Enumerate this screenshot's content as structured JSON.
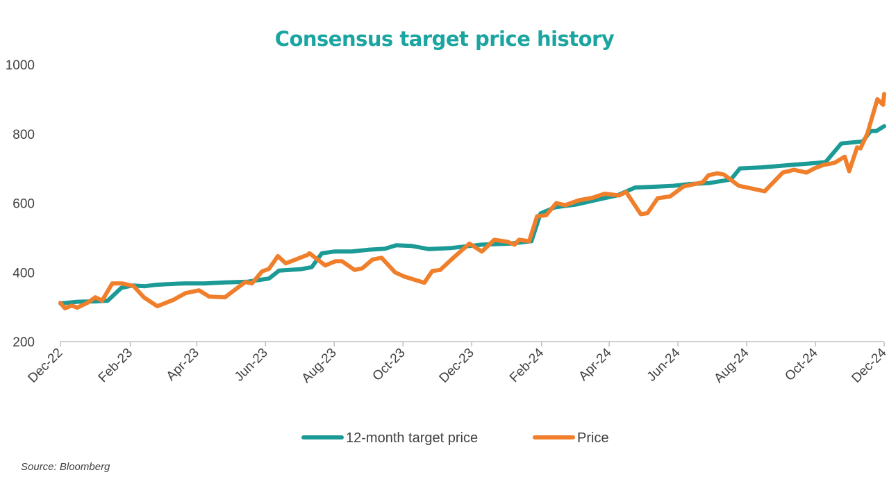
{
  "source_note": "Source: Bloomberg",
  "chart_data": {
    "type": "line",
    "title": "Consensus target price history",
    "title_color": "#1aa5a0",
    "ylim": [
      200,
      1000
    ],
    "yticks": [
      "200",
      "400",
      "600",
      "800",
      "1000"
    ],
    "xlim": [
      "2022-12-01",
      "2024-12-01"
    ],
    "xticks": [
      {
        "date": "2022-12-01",
        "label": "Dec-22"
      },
      {
        "date": "2023-02-01",
        "label": "Feb-23"
      },
      {
        "date": "2023-04-01",
        "label": "Apr-23"
      },
      {
        "date": "2023-06-01",
        "label": "Jun-23"
      },
      {
        "date": "2023-08-01",
        "label": "Aug-23"
      },
      {
        "date": "2023-10-01",
        "label": "Oct-23"
      },
      {
        "date": "2023-12-01",
        "label": "Dec-23"
      },
      {
        "date": "2024-02-01",
        "label": "Feb-24"
      },
      {
        "date": "2024-04-01",
        "label": "Apr-24"
      },
      {
        "date": "2024-06-01",
        "label": "Jun-24"
      },
      {
        "date": "2024-08-01",
        "label": "Aug-24"
      },
      {
        "date": "2024-10-01",
        "label": "Oct-24"
      },
      {
        "date": "2024-12-01",
        "label": "Dec-24"
      }
    ],
    "grid": false,
    "legend_position": "bottom-center",
    "series": [
      {
        "name": "12-month target price",
        "color": "#1b9a96",
        "points": [
          [
            "2022-12-01",
            310
          ],
          [
            "2022-12-16",
            315
          ],
          [
            "2023-01-01",
            316
          ],
          [
            "2023-01-12",
            318
          ],
          [
            "2023-01-24",
            355
          ],
          [
            "2023-02-03",
            362
          ],
          [
            "2023-02-14",
            360
          ],
          [
            "2023-02-24",
            364
          ],
          [
            "2023-03-06",
            366
          ],
          [
            "2023-03-21",
            368
          ],
          [
            "2023-04-08",
            368
          ],
          [
            "2023-04-27",
            371
          ],
          [
            "2023-05-16",
            373
          ],
          [
            "2023-06-04",
            382
          ],
          [
            "2023-06-13",
            405
          ],
          [
            "2023-07-02",
            409
          ],
          [
            "2023-07-12",
            415
          ],
          [
            "2023-07-21",
            455
          ],
          [
            "2023-08-01",
            460
          ],
          [
            "2023-08-16",
            460
          ],
          [
            "2023-08-31",
            465
          ],
          [
            "2023-09-15",
            468
          ],
          [
            "2023-09-25",
            478
          ],
          [
            "2023-10-09",
            476
          ],
          [
            "2023-10-24",
            467
          ],
          [
            "2023-11-12",
            470
          ],
          [
            "2023-11-26",
            475
          ],
          [
            "2023-12-10",
            480
          ],
          [
            "2024-01-04",
            483
          ],
          [
            "2024-01-23",
            490
          ],
          [
            "2024-01-31",
            570
          ],
          [
            "2024-02-13",
            588
          ],
          [
            "2024-03-03",
            596
          ],
          [
            "2024-03-22",
            610
          ],
          [
            "2024-04-08",
            622
          ],
          [
            "2024-04-24",
            645
          ],
          [
            "2024-05-09",
            647
          ],
          [
            "2024-05-28",
            650
          ],
          [
            "2024-06-11",
            655
          ],
          [
            "2024-06-29",
            658
          ],
          [
            "2024-07-18",
            668
          ],
          [
            "2024-07-26",
            700
          ],
          [
            "2024-08-14",
            703
          ],
          [
            "2024-08-29",
            707
          ],
          [
            "2024-09-17",
            712
          ],
          [
            "2024-10-10",
            718
          ],
          [
            "2024-10-24",
            772
          ],
          [
            "2024-11-12",
            778
          ],
          [
            "2024-11-19",
            808
          ],
          [
            "2024-11-24",
            808
          ],
          [
            "2024-12-01",
            822
          ]
        ]
      },
      {
        "name": "Price",
        "color": "#f07f2c",
        "points": [
          [
            "2022-12-01",
            312
          ],
          [
            "2022-12-05",
            296
          ],
          [
            "2022-12-11",
            304
          ],
          [
            "2022-12-16",
            298
          ],
          [
            "2022-12-25",
            312
          ],
          [
            "2023-01-01",
            328
          ],
          [
            "2023-01-07",
            318
          ],
          [
            "2023-01-16",
            368
          ],
          [
            "2023-01-25",
            368
          ],
          [
            "2023-02-04",
            360
          ],
          [
            "2023-02-13",
            328
          ],
          [
            "2023-02-25",
            302
          ],
          [
            "2023-03-11",
            320
          ],
          [
            "2023-03-22",
            340
          ],
          [
            "2023-04-03",
            348
          ],
          [
            "2023-04-12",
            330
          ],
          [
            "2023-04-26",
            328
          ],
          [
            "2023-05-14",
            372
          ],
          [
            "2023-05-20",
            368
          ],
          [
            "2023-05-29",
            403
          ],
          [
            "2023-06-04",
            410
          ],
          [
            "2023-06-12",
            447
          ],
          [
            "2023-06-19",
            426
          ],
          [
            "2023-07-08",
            450
          ],
          [
            "2023-07-10",
            455
          ],
          [
            "2023-07-24",
            420
          ],
          [
            "2023-08-02",
            432
          ],
          [
            "2023-08-08",
            432
          ],
          [
            "2023-08-19",
            407
          ],
          [
            "2023-08-26",
            412
          ],
          [
            "2023-09-04",
            437
          ],
          [
            "2023-09-12",
            442
          ],
          [
            "2023-09-24",
            400
          ],
          [
            "2023-10-02",
            388
          ],
          [
            "2023-10-20",
            370
          ],
          [
            "2023-10-27",
            404
          ],
          [
            "2023-11-03",
            407
          ],
          [
            "2023-11-14",
            440
          ],
          [
            "2023-11-29",
            483
          ],
          [
            "2023-12-10",
            460
          ],
          [
            "2023-12-21",
            494
          ],
          [
            "2024-01-02",
            488
          ],
          [
            "2024-01-08",
            480
          ],
          [
            "2024-01-12",
            494
          ],
          [
            "2024-01-21",
            490
          ],
          [
            "2024-01-28",
            562
          ],
          [
            "2024-02-05",
            565
          ],
          [
            "2024-02-14",
            600
          ],
          [
            "2024-02-22",
            594
          ],
          [
            "2024-03-05",
            608
          ],
          [
            "2024-03-17",
            615
          ],
          [
            "2024-03-28",
            627
          ],
          [
            "2024-04-10",
            622
          ],
          [
            "2024-04-16",
            632
          ],
          [
            "2024-04-29",
            568
          ],
          [
            "2024-05-05",
            571
          ],
          [
            "2024-05-14",
            614
          ],
          [
            "2024-05-25",
            619
          ],
          [
            "2024-06-06",
            648
          ],
          [
            "2024-06-23",
            660
          ],
          [
            "2024-06-28",
            680
          ],
          [
            "2024-07-06",
            686
          ],
          [
            "2024-07-12",
            682
          ],
          [
            "2024-07-25",
            650
          ],
          [
            "2024-08-17",
            634
          ],
          [
            "2024-09-02",
            688
          ],
          [
            "2024-09-12",
            696
          ],
          [
            "2024-09-23",
            688
          ],
          [
            "2024-09-30",
            700
          ],
          [
            "2024-10-08",
            710
          ],
          [
            "2024-10-18",
            716
          ],
          [
            "2024-10-27",
            734
          ],
          [
            "2024-10-31",
            692
          ],
          [
            "2024-11-07",
            761
          ],
          [
            "2024-11-10",
            758
          ],
          [
            "2024-11-16",
            800
          ],
          [
            "2024-11-25",
            900
          ],
          [
            "2024-11-30",
            884
          ],
          [
            "2024-12-01",
            915
          ]
        ]
      }
    ]
  }
}
